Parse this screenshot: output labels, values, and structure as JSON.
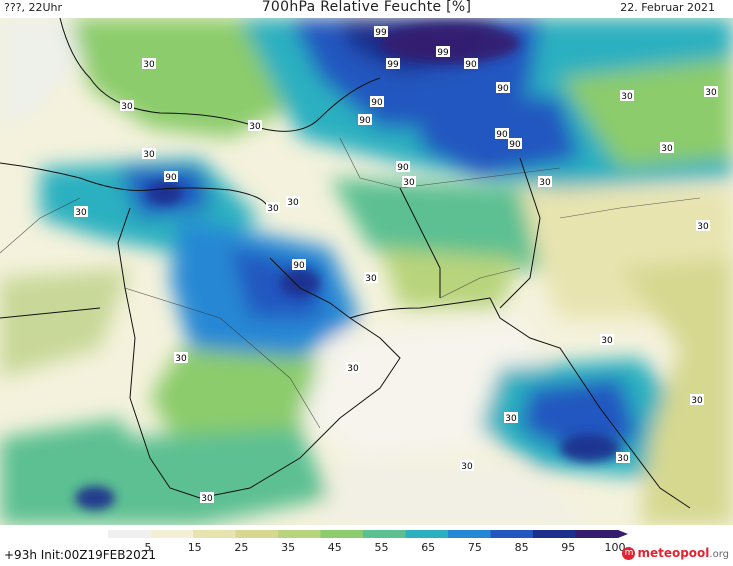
{
  "header": {
    "left": "???, 22Uhr",
    "title": "700hPa Relative Feuchte [%]",
    "date": "22. Februar 2021"
  },
  "map": {
    "contour_labels": [
      "99",
      "99",
      "99",
      "90",
      "90",
      "90",
      "90",
      "90",
      "90",
      "90",
      "90",
      "90",
      "30"
    ]
  },
  "legend": {
    "ticks": [
      "5",
      "15",
      "25",
      "35",
      "45",
      "55",
      "65",
      "75",
      "85",
      "95",
      "100"
    ],
    "colors": [
      "#f0f0f0",
      "#f4f0d8",
      "#e8e4b0",
      "#d6d890",
      "#b8d47c",
      "#8ccc6c",
      "#5cc092",
      "#2cb0c0",
      "#2688d4",
      "#2456c0",
      "#1e2e8c",
      "#341c6e"
    ]
  },
  "footer": {
    "run": "+93h Init:00Z19FEB2021",
    "brand_main": "meteopool",
    "brand_tld": ".org"
  }
}
